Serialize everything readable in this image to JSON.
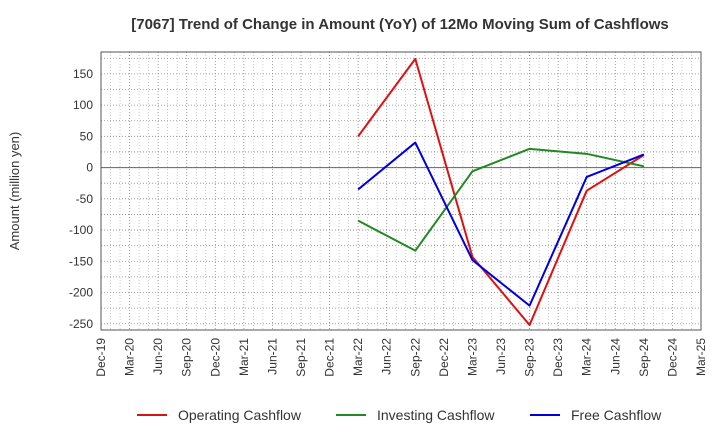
{
  "chart_data": {
    "type": "line",
    "title": "[7067]  Trend of Change in Amount (YoY) of 12Mo Moving Sum of Cashflows",
    "xlabel": "",
    "ylabel": "Amount (million yen)",
    "ylim": [
      -260,
      185
    ],
    "yticks": [
      150,
      100,
      50,
      0,
      -50,
      -100,
      -150,
      -200,
      -250
    ],
    "categories": [
      "Dec-19",
      "Mar-20",
      "Jun-20",
      "Sep-20",
      "Dec-20",
      "Mar-21",
      "Jun-21",
      "Sep-21",
      "Dec-21",
      "Mar-22",
      "Jun-22",
      "Sep-22",
      "Dec-22",
      "Mar-23",
      "Jun-23",
      "Sep-23",
      "Dec-23",
      "Mar-24",
      "Jun-24",
      "Sep-24",
      "Dec-24",
      "Mar-25"
    ],
    "grid": true,
    "legend_position": "bottom",
    "series": [
      {
        "name": "Operating Cashflow",
        "color": "#dd1111",
        "points": [
          [
            "Mar-22",
            50
          ],
          [
            "Sep-22",
            174
          ],
          [
            "Mar-23",
            -143
          ],
          [
            "Sep-23",
            -252
          ],
          [
            "Mar-24",
            -37
          ],
          [
            "Sep-24",
            20
          ]
        ]
      },
      {
        "name": "Investing Cashflow",
        "color": "#228822",
        "points": [
          [
            "Mar-22",
            -85
          ],
          [
            "Sep-22",
            -133
          ],
          [
            "Mar-23",
            -6
          ],
          [
            "Sep-23",
            30
          ],
          [
            "Mar-24",
            22
          ],
          [
            "Sep-24",
            2
          ]
        ]
      },
      {
        "name": "Free Cashflow",
        "color": "#0000dd",
        "points": [
          [
            "Mar-22",
            -35
          ],
          [
            "Sep-22",
            40
          ],
          [
            "Mar-23",
            -148
          ],
          [
            "Sep-23",
            -221
          ],
          [
            "Mar-24",
            -15
          ],
          [
            "Sep-24",
            21
          ]
        ]
      }
    ]
  }
}
